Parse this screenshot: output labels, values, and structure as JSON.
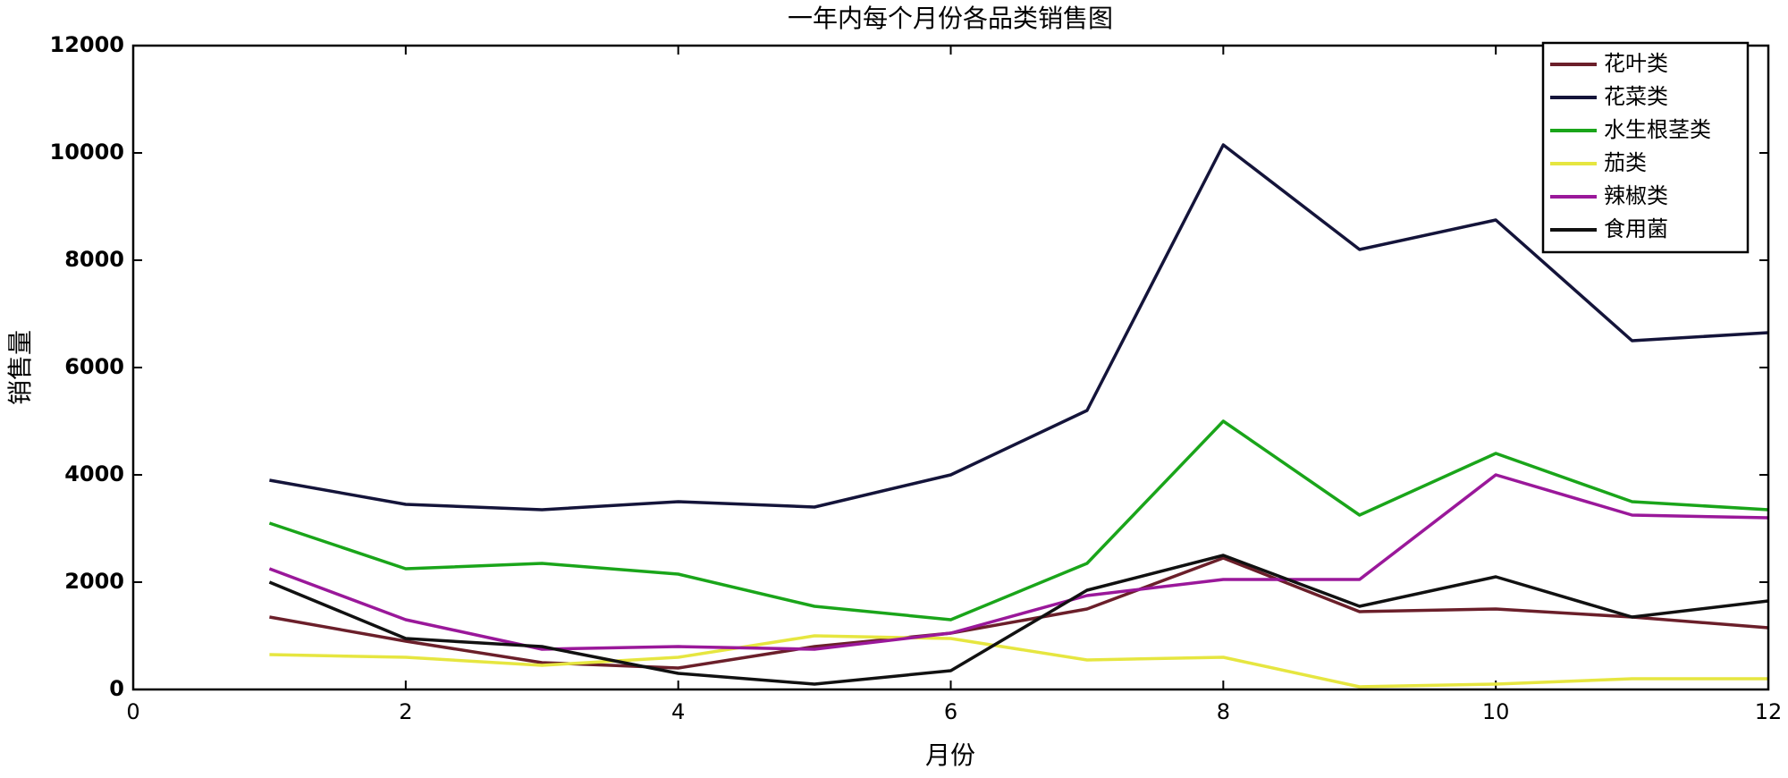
{
  "chart_data": {
    "type": "line",
    "title": "一年内每个月份各品类销售图",
    "x_label": "月份",
    "y_label": "销售量",
    "x": [
      1,
      2,
      3,
      4,
      5,
      6,
      7,
      8,
      9,
      10,
      11,
      12
    ],
    "series": [
      {
        "name": "花叶类",
        "color": "#6b1f2a",
        "values": [
          1350,
          900,
          500,
          400,
          800,
          1050,
          1500,
          2450,
          1450,
          1500,
          1350,
          1150
        ]
      },
      {
        "name": "花菜类",
        "color": "#14143a",
        "values": [
          3900,
          3450,
          3350,
          3500,
          3400,
          4000,
          5200,
          10150,
          8200,
          8750,
          6500,
          6650
        ]
      },
      {
        "name": "水生根茎类",
        "color": "#1aa51a",
        "values": [
          3100,
          2250,
          2350,
          2150,
          1550,
          1300,
          2350,
          5000,
          3250,
          4400,
          3500,
          3350
        ]
      },
      {
        "name": "茄类",
        "color": "#e6e640",
        "values": [
          650,
          600,
          450,
          600,
          1000,
          950,
          550,
          600,
          50,
          100,
          200,
          200
        ]
      },
      {
        "name": "辣椒类",
        "color": "#9a189a",
        "values": [
          2250,
          1300,
          750,
          800,
          750,
          1050,
          1750,
          2050,
          2050,
          4000,
          3250,
          3200
        ]
      },
      {
        "name": "食用菌",
        "color": "#111111",
        "values": [
          2000,
          950,
          800,
          300,
          100,
          350,
          1850,
          2500,
          1550,
          2100,
          1350,
          1650
        ]
      }
    ],
    "xlim": [
      0,
      12
    ],
    "xticks": [
      0,
      2,
      4,
      6,
      8,
      10,
      12
    ],
    "ylim": [
      0,
      12000
    ],
    "yticks": [
      0,
      2000,
      4000,
      6000,
      8000,
      10000,
      12000
    ],
    "grid": false,
    "legend": "upper right"
  }
}
